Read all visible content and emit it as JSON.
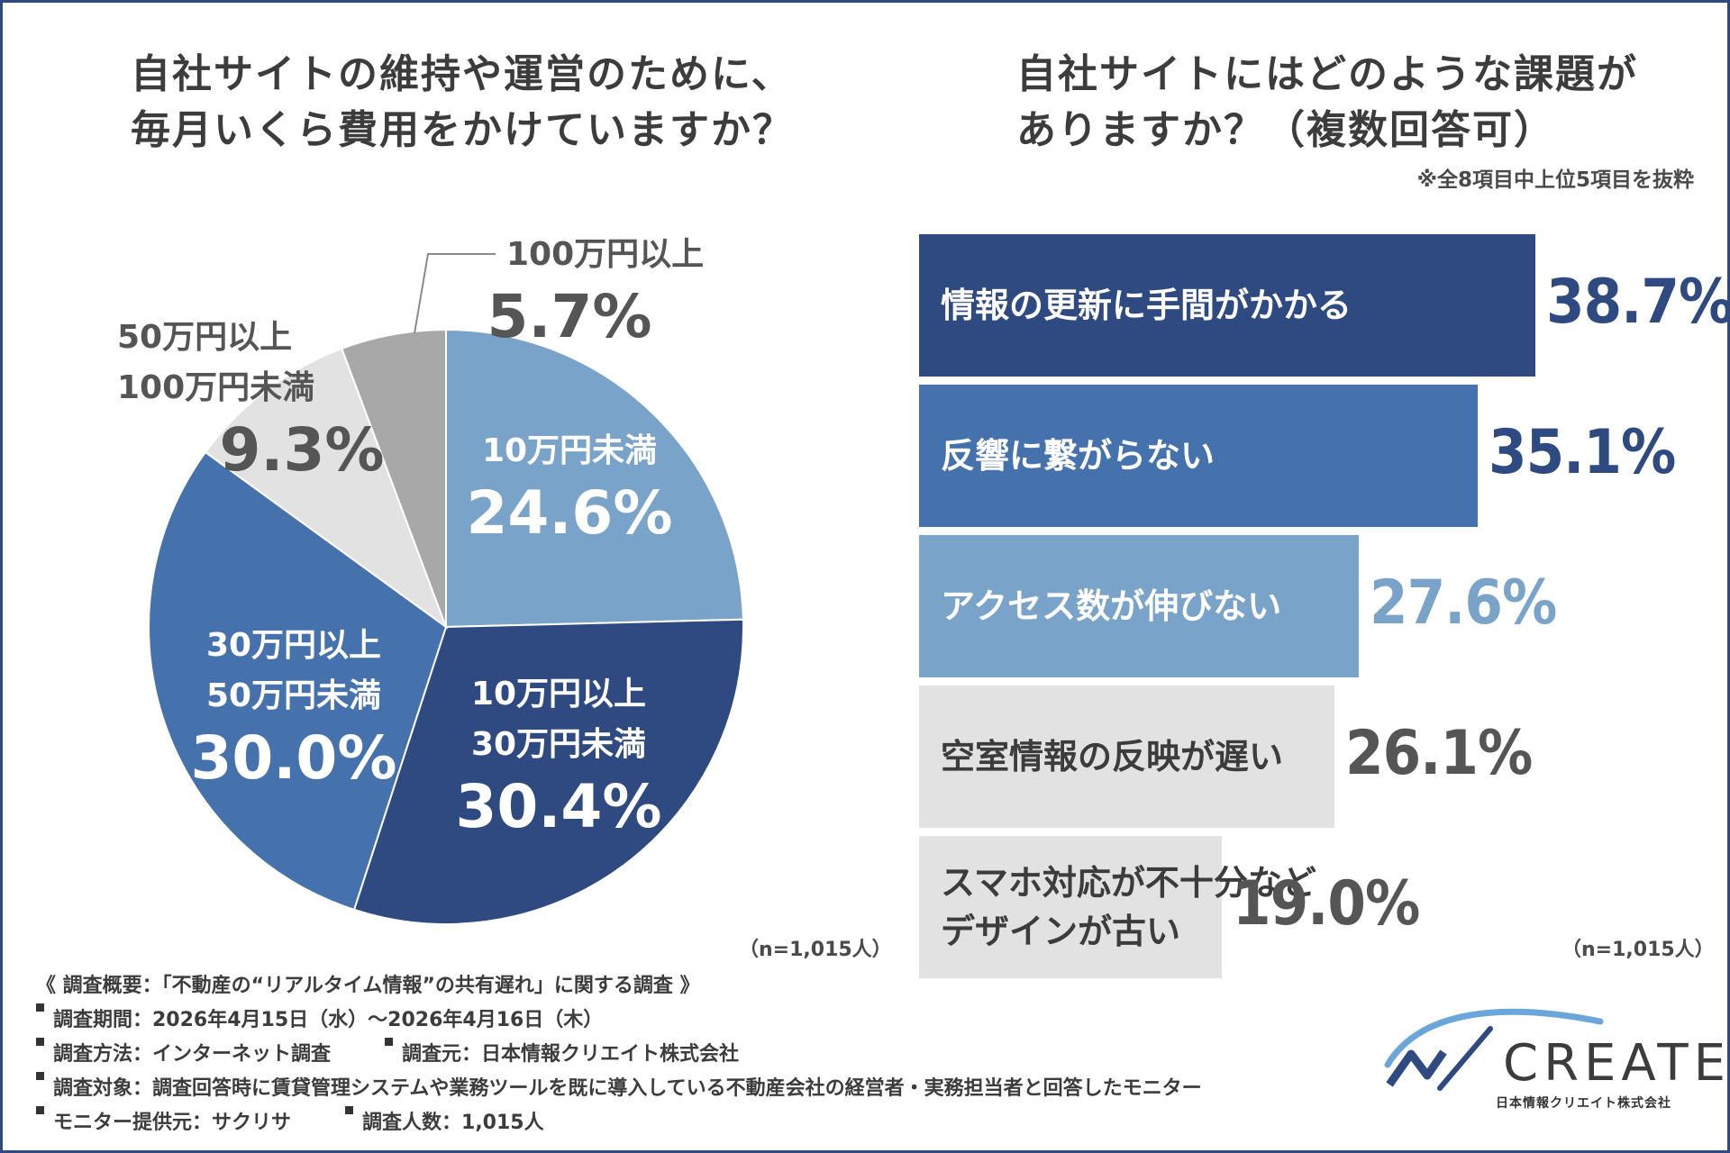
{
  "left_title": [
    "自社サイトの維持や運営のために、",
    "毎月いくら費用をかけていますか？"
  ],
  "right_title": [
    "自社サイトにはどのような課題が",
    "ありますか？（複数回答可）"
  ],
  "right_note": "※全8項目中上位5項目を抜粋",
  "n_left": "（n=1,015人）",
  "n_right": "（n=1,015人）",
  "chart_data": [
    {
      "type": "pie",
      "title": "自社サイトの維持や運営のために、毎月いくら費用をかけていますか？",
      "slices": [
        {
          "label": "10万円未満",
          "value": 24.6,
          "value_text": "24.6%",
          "color": "#79a3c9"
        },
        {
          "label": "10万円以上\n30万円未満",
          "value": 30.4,
          "value_text": "30.4%",
          "color": "#2e4a80"
        },
        {
          "label": "30万円以上\n50万円未満",
          "value": 30.0,
          "value_text": "30.0%",
          "color": "#4572ad"
        },
        {
          "label": "50万円以上\n100万円未満",
          "value": 9.3,
          "value_text": "9.3%",
          "color": "#e2e2e2"
        },
        {
          "label": "100万円以上",
          "value": 5.7,
          "value_text": "5.7%",
          "color": "#a8a8a8"
        }
      ]
    },
    {
      "type": "bar",
      "orientation": "horizontal",
      "title": "自社サイトにはどのような課題がありますか？（複数回答可）",
      "categories": [
        "情報の更新に手間がかかる",
        "反響に繋がらない",
        "アクセス数が伸びない",
        "空室情報の反映が遅い",
        "スマホ対応が不十分など\nデザインが古い"
      ],
      "values": [
        38.7,
        35.1,
        27.6,
        26.1,
        19.0
      ],
      "value_texts": [
        "38.7%",
        "35.1%",
        "27.6%",
        "26.1%",
        "19.0%"
      ],
      "colors": [
        "#2e4a80",
        "#4572ad",
        "#79a3c9",
        "#e2e2e2",
        "#e2e2e2"
      ],
      "label_colors": [
        "#ffffff",
        "#ffffff",
        "#ffffff",
        "#3c3c3c",
        "#3c3c3c"
      ],
      "value_colors": [
        "#2e4a80",
        "#2e4a80",
        "#79a3c9",
        "#555555",
        "#555555"
      ]
    }
  ],
  "footer": {
    "heading": "《 調査概要：「不動産の“リアルタイム情報”の共有遅れ」に関する調査 》",
    "period": "調査期間：2026年4月15日（水）～2026年4月16日（木）",
    "method": "調査方法：インターネット調査",
    "source": "調査元：日本情報クリエイト株式会社",
    "target": "調査対象：調査回答時に賃貸管理システムや業務ツールを既に導入している不動産会社の経営者・実務担当者と回答したモニター",
    "provider": "モニター提供元：サクリサ",
    "count": "調査人数：1,015人"
  },
  "logo": {
    "word": "CREATE",
    "sub": "日本情報クリエイト株式会社"
  }
}
